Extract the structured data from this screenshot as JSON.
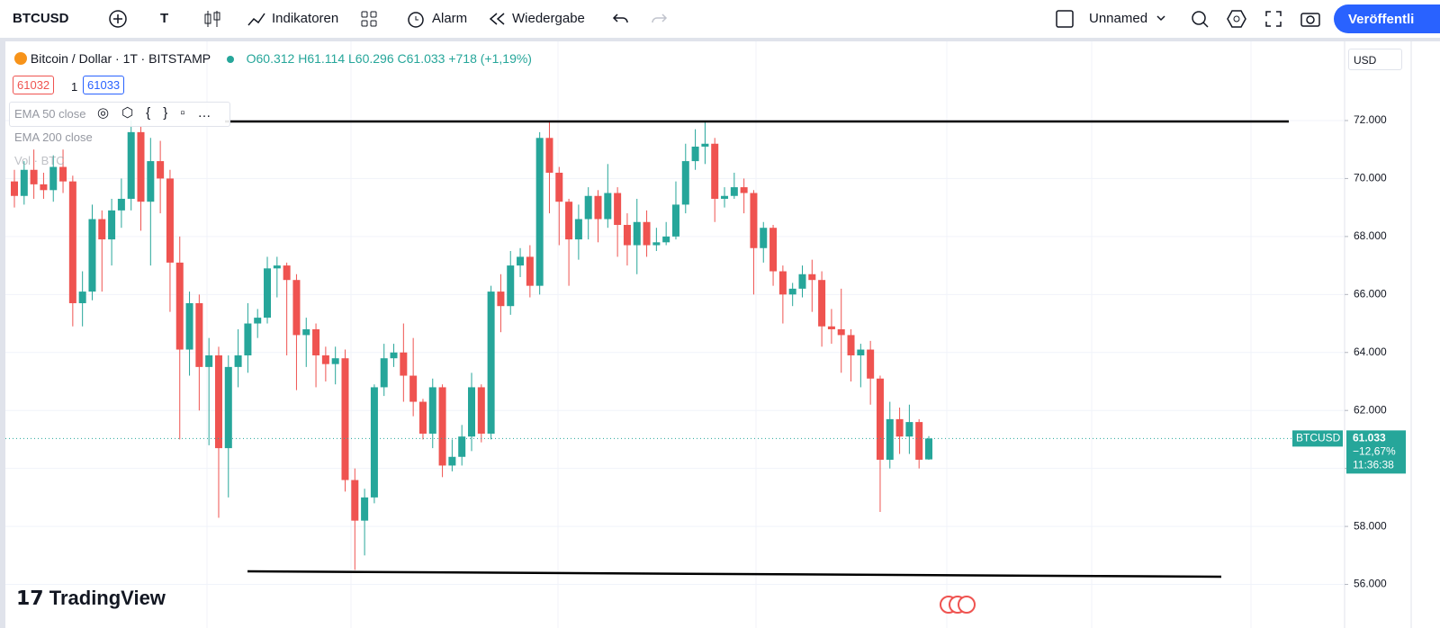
{
  "toolbar": {
    "symbol": "BTCUSD",
    "type_button": "T",
    "indicators": "Indikatoren",
    "alert": "Alarm",
    "replay": "Wiedergabe",
    "layout_name": "Unnamed",
    "publish": "Veröffentli"
  },
  "legend": {
    "title": "Bitcoin / Dollar · 1T · BITSTAMP",
    "open": "O60.312",
    "high": "H61.114",
    "low": "L60.296",
    "close": "C61.033",
    "change": "+718 (+1,19%)",
    "bid": "61032",
    "spread": "1",
    "ask": "61033",
    "indicators": [
      "EMA 50 close",
      "EMA 200 close",
      "Vol · BTC"
    ]
  },
  "currency": "USD",
  "price_label": {
    "symbol": "BTCUSD",
    "price": "61.033",
    "change": "−12,67%",
    "countdown": "11:36:38"
  },
  "brand": "TradingView",
  "chart_data": {
    "type": "candlestick",
    "up_color": "#26a69a",
    "down_color": "#ef5350",
    "grid": true,
    "ylim": [
      54900,
      74730
    ],
    "yticks": [
      {
        "value": 56000,
        "label": "56.000"
      },
      {
        "value": 58000,
        "label": "58.000"
      },
      {
        "value": 60000,
        "label": "60.000"
      },
      {
        "value": 62000,
        "label": "62.000"
      },
      {
        "value": 64000,
        "label": "64.000"
      },
      {
        "value": 66000,
        "label": "66.000"
      },
      {
        "value": 68000,
        "label": "68.000"
      },
      {
        "value": 70000,
        "label": "70.000"
      },
      {
        "value": 72000,
        "label": "72.000"
      }
    ],
    "open": [
      69900,
      69400,
      70300,
      69800,
      69600,
      70400,
      69900,
      65700,
      66100,
      68600,
      67900,
      68900,
      69300,
      71600,
      69200,
      70600,
      70000,
      67100,
      64100,
      65700,
      63500,
      63900,
      60700,
      63500,
      63900,
      65000,
      65200,
      66900,
      67000,
      66500,
      64600,
      64800,
      63900,
      63600,
      63800,
      59600,
      58200,
      59000,
      62800,
      63800,
      64000,
      63200,
      62300,
      61200,
      62800,
      60100,
      60400,
      61100,
      62800,
      61200,
      66100,
      65600,
      67000,
      67300,
      66300,
      71400,
      70200,
      69200,
      67900,
      68600,
      69400,
      68600,
      69500,
      68400,
      67700,
      68500,
      67700,
      67800,
      68000,
      69100,
      70600,
      71100,
      71200,
      69300,
      69400,
      69700,
      69500,
      67600,
      68300,
      66800,
      66000,
      66200,
      66700,
      66500,
      64900,
      64800,
      64600,
      63900,
      64100,
      63100,
      60300,
      61700,
      61100,
      61600,
      60312
    ],
    "high": [
      70300,
      70600,
      71000,
      70200,
      70800,
      71000,
      70100,
      66800,
      69100,
      68900,
      69300,
      70000,
      72000,
      71800,
      71400,
      71300,
      70300,
      68000,
      66100,
      66000,
      64500,
      64200,
      63900,
      64800,
      65700,
      65500,
      67300,
      67300,
      67100,
      66700,
      65200,
      65000,
      64200,
      64200,
      64100,
      60000,
      59300,
      62900,
      64300,
      64300,
      65000,
      64500,
      62400,
      63100,
      62900,
      61000,
      61500,
      63300,
      62900,
      66300,
      66700,
      67500,
      67600,
      67700,
      71600,
      72000,
      70400,
      69300,
      69100,
      69700,
      69600,
      70500,
      69700,
      68800,
      69300,
      68900,
      68300,
      68500,
      69900,
      71200,
      71700,
      72000,
      71400,
      69700,
      70200,
      70000,
      69600,
      68500,
      68400,
      67000,
      66400,
      67000,
      67200,
      66800,
      65500,
      66200,
      64800,
      64300,
      64400,
      63200,
      62300,
      62100,
      62200,
      61700,
      61114
    ],
    "low": [
      69000,
      69100,
      69300,
      69300,
      69200,
      69500,
      64900,
      64900,
      65800,
      66100,
      67000,
      68300,
      68900,
      68200,
      67000,
      68800,
      65400,
      61000,
      63200,
      62000,
      60800,
      58300,
      59000,
      62800,
      63300,
      64500,
      65000,
      65900,
      63900,
      62700,
      63500,
      62800,
      63000,
      62900,
      59200,
      56500,
      57000,
      58800,
      62500,
      63500,
      62300,
      61800,
      61000,
      60700,
      59700,
      59900,
      60100,
      60600,
      60900,
      61000,
      64700,
      65300,
      66600,
      65900,
      66000,
      68800,
      67700,
      66300,
      67200,
      67900,
      67800,
      68300,
      67300,
      67000,
      66700,
      67300,
      67500,
      67700,
      67900,
      68800,
      70300,
      70500,
      68500,
      69000,
      69300,
      68800,
      66000,
      67100,
      66300,
      65000,
      65600,
      65900,
      65400,
      64200,
      64300,
      63300,
      63000,
      62800,
      62200,
      58500,
      60000,
      60500,
      60500,
      60000,
      60296
    ],
    "close": [
      69400,
      70300,
      69800,
      69600,
      70400,
      69900,
      65700,
      66100,
      68600,
      67900,
      68900,
      69300,
      71600,
      69200,
      70600,
      70000,
      67100,
      64100,
      65700,
      63500,
      63900,
      60700,
      63500,
      63900,
      65000,
      65200,
      66900,
      67000,
      66500,
      64600,
      64800,
      63900,
      63600,
      63800,
      59600,
      58200,
      59000,
      62800,
      63800,
      64000,
      63200,
      62300,
      61200,
      62800,
      60100,
      60400,
      61100,
      62800,
      61200,
      66100,
      65600,
      67000,
      67300,
      66300,
      71400,
      70200,
      69200,
      67900,
      68600,
      69400,
      68600,
      69500,
      68400,
      67700,
      68500,
      67700,
      67800,
      68000,
      69100,
      70600,
      71100,
      71200,
      69300,
      69400,
      69700,
      69500,
      67600,
      68300,
      66800,
      66000,
      66200,
      66700,
      66500,
      64900,
      64800,
      64600,
      63900,
      64100,
      63100,
      60300,
      61700,
      61100,
      61600,
      60300,
      61033
    ]
  }
}
